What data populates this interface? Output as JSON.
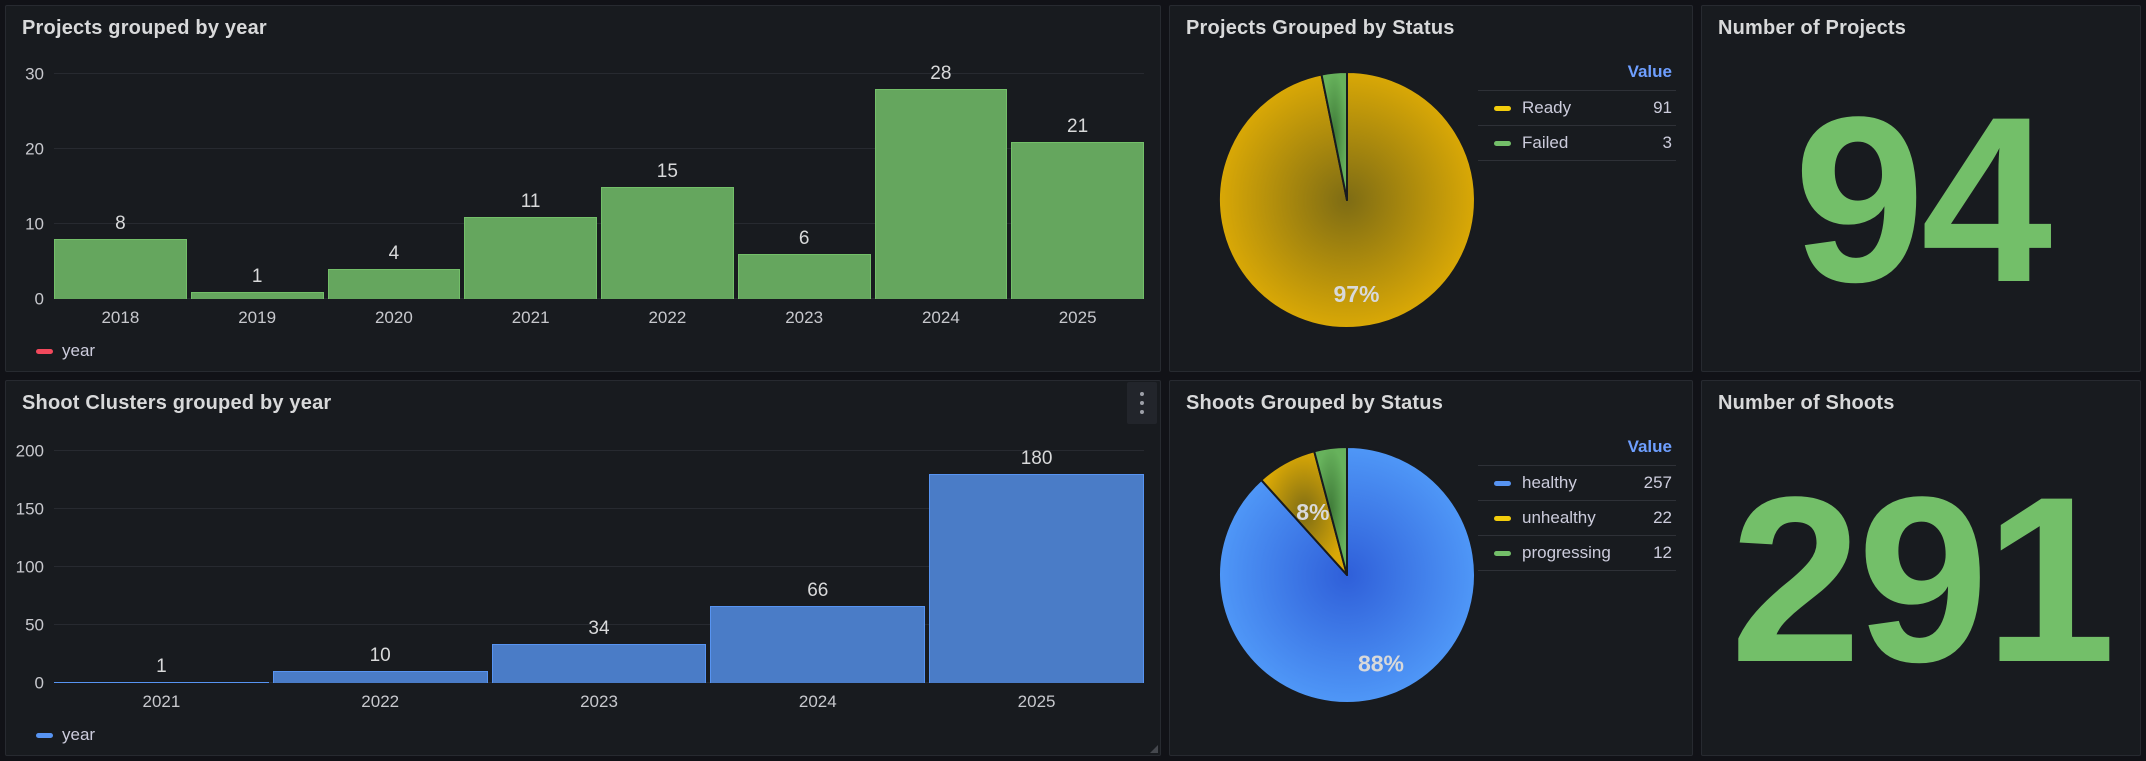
{
  "panels": {
    "projects_by_year": {
      "title": "Projects grouped by year"
    },
    "shoot_clusters_by_year": {
      "title": "Shoot Clusters grouped by year"
    },
    "projects_by_status": {
      "title": "Projects Grouped by Status"
    },
    "shoots_by_status": {
      "title": "Shoots Grouped by Status"
    },
    "number_of_projects": {
      "title": "Number of Projects",
      "value": "94",
      "value_color": "#73BF69"
    },
    "number_of_shoots": {
      "title": "Number of Shoots",
      "value": "291",
      "value_color": "#73BF69"
    }
  },
  "chart_data": [
    {
      "type": "bar",
      "panel": "projects-grouped-by-year",
      "title": "Projects grouped by year",
      "categories": [
        "2018",
        "2019",
        "2020",
        "2021",
        "2022",
        "2023",
        "2024",
        "2025"
      ],
      "values": [
        8,
        1,
        4,
        11,
        15,
        6,
        28,
        21
      ],
      "xlabel": "",
      "ylabel": "",
      "ylim": [
        0,
        31
      ],
      "yticks": [
        0,
        10,
        20,
        30
      ],
      "grid": "horizontal",
      "bar_color": "#73BF69",
      "bar_fill": "#65A65E",
      "legend": {
        "position": "bottom-left",
        "label": "year",
        "swatch_color": "#F2495C"
      }
    },
    {
      "type": "bar",
      "panel": "shoot-clusters-grouped-by-year",
      "title": "Shoot Clusters grouped by year",
      "categories": [
        "2021",
        "2022",
        "2023",
        "2024",
        "2025"
      ],
      "values": [
        1,
        10,
        34,
        66,
        180
      ],
      "xlabel": "",
      "ylabel": "",
      "ylim": [
        0,
        205
      ],
      "yticks": [
        0,
        50,
        100,
        150,
        200
      ],
      "grid": "horizontal",
      "bar_color": "#5794F2",
      "bar_fill": "#4A7CC7",
      "legend": {
        "position": "bottom-left",
        "label": "year",
        "swatch_color": "#5794F2"
      }
    },
    {
      "type": "pie",
      "panel": "projects-grouped-by-status",
      "title": "Projects Grouped by Status",
      "legend_header": "Value",
      "legend_position": "right",
      "slices": [
        {
          "label": "Ready",
          "value": 91,
          "pct_label": "97%",
          "color": "#F2CC0C",
          "pie_base": "#D9A806",
          "pie_center": "#7E6C14"
        },
        {
          "label": "Failed",
          "value": 3,
          "pct_label": null,
          "color": "#73BF69",
          "pie_base": "#67B25C",
          "pie_center": "#3F7A38"
        }
      ]
    },
    {
      "type": "pie",
      "panel": "shoots-grouped-by-status",
      "title": "Shoots Grouped by Status",
      "legend_header": "Value",
      "legend_position": "right",
      "slices": [
        {
          "label": "healthy",
          "value": 257,
          "pct_label": "88%",
          "color": "#5794F2",
          "pie_base": "#4F97F7",
          "pie_center": "#2F5FD9"
        },
        {
          "label": "unhealthy",
          "value": 22,
          "pct_label": "8%",
          "color": "#F2CC0C",
          "pie_base": "#D9A806",
          "pie_center": "#7E6C14"
        },
        {
          "label": "progressing",
          "value": 12,
          "pct_label": null,
          "color": "#73BF69",
          "pie_base": "#67B25C",
          "pie_center": "#3F7A38"
        }
      ]
    }
  ],
  "icons": {
    "panel_menu": "kebab-vertical-dots",
    "resize": "corner-resize-triangle"
  }
}
